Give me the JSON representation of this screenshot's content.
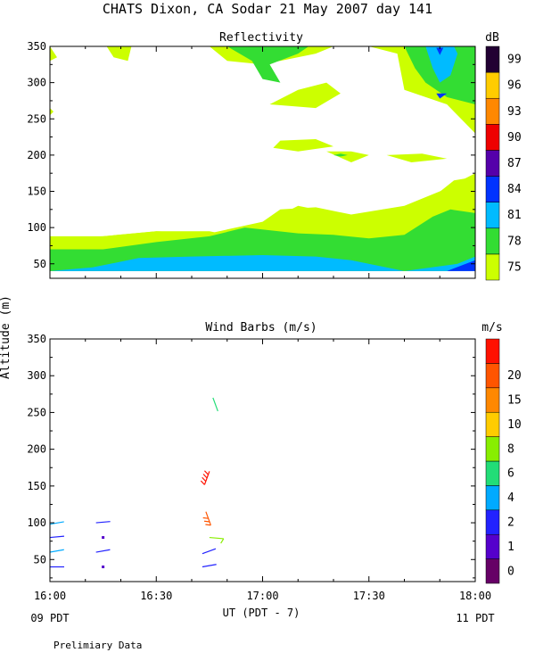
{
  "page_title": "CHATS Dixon, CA  Sodar  21 May 2007  day 141",
  "y_axis_label": "Altitude (m)",
  "x_axis_label": "UT  (PDT - 7)",
  "left_local_label": "09 PDT",
  "right_local_label": "11 PDT",
  "footer_note": "Prelimiary Data",
  "chart_data": [
    {
      "type": "heatmap",
      "title": "Reflectivity",
      "colorbar_unit": "dB",
      "colorbar_levels": [
        "75",
        "78",
        "81",
        "84",
        "87",
        "90",
        "93",
        "96",
        "99"
      ],
      "colorbar_colors": [
        "#ccff00",
        "#33dd33",
        "#00bbff",
        "#0033ff",
        "#5500aa",
        "#ee0000",
        "#ff8800",
        "#ffcc00",
        "#220033"
      ],
      "x_ticks": [
        "16:00",
        "16:30",
        "17:00",
        "17:30",
        "18:00"
      ],
      "y_ticks": [
        "50",
        "100",
        "150",
        "200",
        "250",
        "300",
        "350"
      ],
      "xlim": [
        "16:00",
        "18:00"
      ],
      "ylim": [
        30,
        350
      ],
      "x_unit": "minutes after 16:00 UT",
      "regions": [
        {
          "level": "75",
          "points": [
            [
              0,
              40
            ],
            [
              0,
              85
            ],
            [
              15,
              88
            ],
            [
              30,
              95
            ],
            [
              45,
              95
            ],
            [
              48,
              92
            ],
            [
              60,
              105
            ],
            [
              70,
              130
            ],
            [
              75,
              125
            ],
            [
              85,
              115
            ],
            [
              100,
              125
            ],
            [
              115,
              145
            ],
            [
              120,
              170
            ],
            [
              114,
              165
            ],
            [
              105,
              130
            ],
            [
              94,
              125
            ],
            [
              88,
              115
            ],
            [
              80,
              110
            ],
            [
              60,
              105
            ],
            [
              45,
              85
            ],
            [
              0,
              40
            ]
          ]
        },
        {
          "level": "75",
          "points": [
            [
              0,
              40
            ],
            [
              0,
              88
            ],
            [
              15,
              88
            ],
            [
              30,
              95
            ],
            [
              45,
              92
            ],
            [
              60,
              108
            ],
            [
              65,
              125
            ],
            [
              75,
              128
            ],
            [
              85,
              118
            ],
            [
              100,
              130
            ],
            [
              110,
              150
            ],
            [
              120,
              175
            ],
            [
              120,
              40
            ]
          ]
        },
        {
          "level": "78",
          "points": [
            [
              0,
              40
            ],
            [
              0,
              70
            ],
            [
              15,
              70
            ],
            [
              30,
              80
            ],
            [
              45,
              88
            ],
            [
              55,
              100
            ],
            [
              70,
              92
            ],
            [
              80,
              90
            ],
            [
              90,
              85
            ],
            [
              100,
              90
            ],
            [
              108,
              115
            ],
            [
              113,
              125
            ],
            [
              120,
              120
            ],
            [
              120,
              40
            ]
          ]
        },
        {
          "level": "81",
          "points": [
            [
              0,
              40
            ],
            [
              12,
              45
            ],
            [
              25,
              58
            ],
            [
              40,
              60
            ],
            [
              60,
              62
            ],
            [
              75,
              60
            ],
            [
              85,
              55
            ],
            [
              100,
              40
            ],
            [
              115,
              50
            ],
            [
              120,
              60
            ],
            [
              120,
              40
            ]
          ]
        },
        {
          "level": "84",
          "points": [
            [
              112,
              40
            ],
            [
              120,
              55
            ],
            [
              120,
              40
            ]
          ]
        },
        {
          "level": "75",
          "points": [
            [
              45,
              350
            ],
            [
              50,
              330
            ],
            [
              60,
              325
            ],
            [
              75,
              340
            ],
            [
              80,
              350
            ]
          ]
        },
        {
          "level": "78",
          "points": [
            [
              50,
              350
            ],
            [
              57,
              330
            ],
            [
              60,
              305
            ],
            [
              65,
              300
            ],
            [
              62,
              325
            ],
            [
              70,
              340
            ],
            [
              73,
              350
            ]
          ]
        },
        {
          "level": "75",
          "points": [
            [
              62,
              270
            ],
            [
              75,
              265
            ],
            [
              82,
              285
            ],
            [
              78,
              300
            ],
            [
              70,
              290
            ]
          ]
        },
        {
          "level": "75",
          "points": [
            [
              90,
              350
            ],
            [
              98,
              340
            ],
            [
              100,
              290
            ],
            [
              112,
              270
            ],
            [
              120,
              230
            ],
            [
              120,
              350
            ]
          ]
        },
        {
          "level": "78",
          "points": [
            [
              100,
              350
            ],
            [
              103,
              320
            ],
            [
              106,
              300
            ],
            [
              112,
              280
            ],
            [
              120,
              270
            ],
            [
              120,
              350
            ]
          ]
        },
        {
          "level": "81",
          "points": [
            [
              106,
              350
            ],
            [
              108,
              320
            ],
            [
              110,
              300
            ],
            [
              113,
              310
            ],
            [
              115,
              340
            ],
            [
              114,
              350
            ]
          ]
        },
        {
          "level": "84",
          "points": [
            [
              109,
              348
            ],
            [
              110,
              338
            ],
            [
              111,
              348
            ]
          ]
        },
        {
          "level": "84",
          "points": [
            [
              109,
              285
            ],
            [
              110,
              278
            ],
            [
              112,
              285
            ]
          ]
        },
        {
          "level": "75",
          "points": [
            [
              63,
              210
            ],
            [
              70,
              205
            ],
            [
              80,
              212
            ],
            [
              75,
              222
            ],
            [
              65,
              220
            ]
          ]
        },
        {
          "level": "75",
          "points": [
            [
              78,
              205
            ],
            [
              85,
              190
            ],
            [
              90,
              200
            ],
            [
              85,
              205
            ]
          ]
        },
        {
          "level": "75",
          "points": [
            [
              95,
              200
            ],
            [
              102,
              190
            ],
            [
              112,
              195
            ],
            [
              105,
              202
            ]
          ]
        },
        {
          "level": "75",
          "points": [
            [
              0,
              350
            ],
            [
              2,
              335
            ],
            [
              0,
              330
            ]
          ]
        },
        {
          "level": "75",
          "points": [
            [
              16,
              350
            ],
            [
              18,
              335
            ],
            [
              22,
              330
            ],
            [
              23,
              350
            ]
          ]
        },
        {
          "level": "75",
          "points": [
            [
              0,
              255
            ],
            [
              1,
              260
            ],
            [
              0,
              265
            ]
          ]
        },
        {
          "level": "78",
          "points": [
            [
              80,
              200
            ],
            [
              82,
              198
            ],
            [
              84,
              200
            ],
            [
              82,
              202
            ]
          ]
        }
      ]
    },
    {
      "type": "scatter",
      "title": "Wind Barbs (m/s)",
      "colorbar_unit": "m/s",
      "colorbar_levels": [
        "0",
        "1",
        "2",
        "4",
        "6",
        "8",
        "10",
        "15",
        "20"
      ],
      "colorbar_colors": [
        "#660066",
        "#5500cc",
        "#2222ff",
        "#00aaff",
        "#22dd77",
        "#88ee00",
        "#ffcc00",
        "#ff8800",
        "#ff5500",
        "#ff1100"
      ],
      "x_ticks": [
        "16:00",
        "16:30",
        "17:00",
        "17:30",
        "18:00"
      ],
      "y_ticks": [
        "50",
        "100",
        "150",
        "200",
        "250",
        "300",
        "350"
      ],
      "xlim": [
        "16:00",
        "18:00"
      ],
      "ylim": [
        20,
        350
      ],
      "x_unit": "minutes after 16:00 UT",
      "points": [
        {
          "x": 0,
          "y": 98,
          "speed": 2,
          "dir": 80
        },
        {
          "x": 0,
          "y": 80,
          "speed": 1,
          "dir": 85
        },
        {
          "x": 0,
          "y": 60,
          "speed": 2,
          "dir": 80
        },
        {
          "x": 0,
          "y": 40,
          "speed": 1,
          "dir": 90
        },
        {
          "x": 13,
          "y": 100,
          "speed": 1,
          "dir": 85
        },
        {
          "x": 15,
          "y": 80,
          "speed": 0,
          "dir": 0
        },
        {
          "x": 13,
          "y": 60,
          "speed": 1,
          "dir": 80
        },
        {
          "x": 15,
          "y": 40,
          "speed": 0,
          "dir": 0
        },
        {
          "x": 43,
          "y": 40,
          "speed": 1,
          "dir": 80
        },
        {
          "x": 43,
          "y": 58,
          "speed": 1,
          "dir": 70
        },
        {
          "x": 45,
          "y": 80,
          "speed": 6,
          "dir": 95
        },
        {
          "x": 44,
          "y": 115,
          "speed": 15,
          "dir": 160
        },
        {
          "x": 45,
          "y": 170,
          "speed": 20,
          "dir": 200
        },
        {
          "x": 46,
          "y": 270,
          "speed": 4,
          "dir": 160
        }
      ]
    }
  ]
}
